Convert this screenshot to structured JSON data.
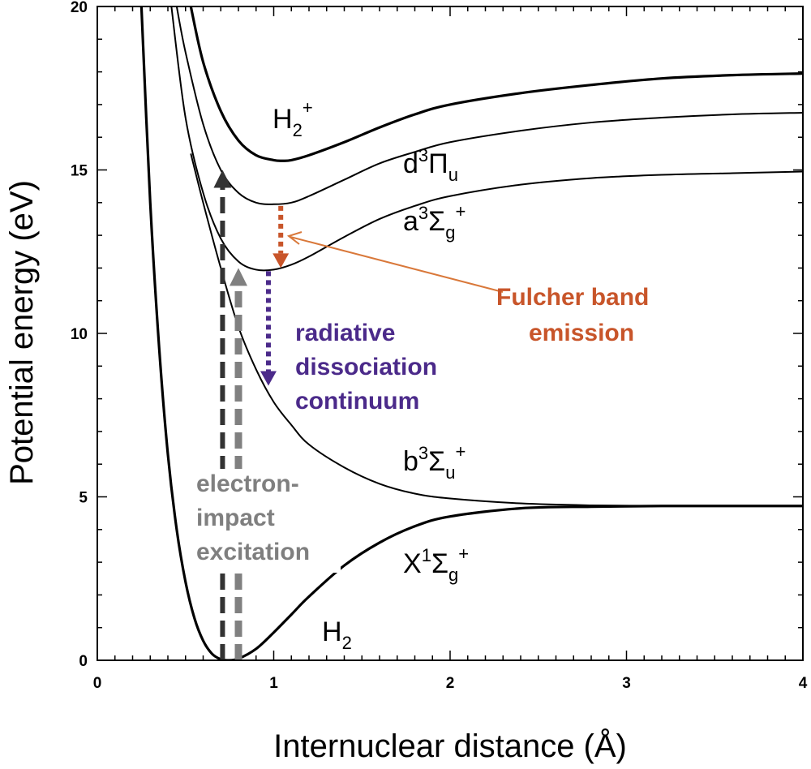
{
  "chart_data": {
    "type": "line",
    "title": "",
    "xlabel": "Internuclear distance (Å)",
    "ylabel": "Potential energy (eV)",
    "xlim": [
      0,
      4
    ],
    "ylim": [
      0,
      20
    ],
    "xticks": [
      "0",
      "1",
      "2",
      "3",
      "4"
    ],
    "yticks": [
      "0",
      "5",
      "10",
      "15",
      "20"
    ],
    "grid": false,
    "legend": "none",
    "series": [
      {
        "name": "X1Σg+",
        "x": [
          0.25,
          0.3,
          0.35,
          0.4,
          0.45,
          0.5,
          0.55,
          0.6,
          0.65,
          0.7,
          0.74,
          0.8,
          0.9,
          1.0,
          1.1,
          1.2,
          1.4,
          1.6,
          1.8,
          2.0,
          2.4,
          2.8,
          3.2,
          3.6,
          4.0
        ],
        "y": [
          20,
          14.0,
          9.6,
          6.3,
          4.0,
          2.4,
          1.3,
          0.6,
          0.2,
          0.03,
          0.0,
          0.05,
          0.35,
          0.85,
          1.4,
          1.95,
          2.9,
          3.6,
          4.1,
          4.4,
          4.65,
          4.7,
          4.72,
          4.72,
          4.72
        ]
      },
      {
        "name": "b3Σu+",
        "x": [
          0.53,
          0.6,
          0.7,
          0.8,
          0.9,
          1.0,
          1.1,
          1.2,
          1.4,
          1.6,
          1.8,
          2.0,
          2.4,
          2.8,
          3.2,
          3.6,
          4.0
        ],
        "y": [
          15.5,
          14.0,
          12.0,
          10.2,
          8.9,
          7.9,
          7.2,
          6.6,
          5.9,
          5.4,
          5.1,
          4.95,
          4.8,
          4.74,
          4.72,
          4.72,
          4.72
        ]
      },
      {
        "name": "a3Σg+",
        "x": [
          0.42,
          0.5,
          0.6,
          0.7,
          0.8,
          0.9,
          1.0,
          1.1,
          1.2,
          1.4,
          1.6,
          1.8,
          2.0,
          2.4,
          2.8,
          3.2,
          3.6,
          4.0
        ],
        "y": [
          20,
          16.6,
          14.3,
          12.9,
          12.2,
          11.95,
          11.95,
          12.1,
          12.35,
          12.95,
          13.5,
          13.9,
          14.2,
          14.55,
          14.75,
          14.85,
          14.9,
          14.95
        ]
      },
      {
        "name": "d3Πu",
        "x": [
          0.45,
          0.5,
          0.6,
          0.7,
          0.8,
          0.9,
          1.0,
          1.1,
          1.2,
          1.4,
          1.6,
          1.8,
          2.0,
          2.4,
          2.8,
          3.2,
          3.6,
          4.0
        ],
        "y": [
          20,
          18.6,
          16.4,
          15.0,
          14.3,
          14.0,
          13.95,
          14.0,
          14.2,
          14.7,
          15.2,
          15.55,
          15.85,
          16.2,
          16.45,
          16.6,
          16.7,
          16.75
        ]
      },
      {
        "name": "H2+",
        "x": [
          0.53,
          0.6,
          0.7,
          0.8,
          0.9,
          1.0,
          1.05,
          1.1,
          1.2,
          1.4,
          1.6,
          1.8,
          2.0,
          2.4,
          2.8,
          3.2,
          3.6,
          4.0
        ],
        "y": [
          20,
          18.3,
          16.8,
          15.9,
          15.45,
          15.3,
          15.28,
          15.3,
          15.45,
          15.85,
          16.3,
          16.7,
          17.0,
          17.35,
          17.6,
          17.8,
          17.9,
          17.95
        ]
      }
    ],
    "labels": {
      "h2_plus": "H",
      "h2_plus_sub": "2",
      "h2_plus_sup": "+",
      "d_state": "d",
      "d_sup": "3",
      "d_sym": "Π",
      "d_sub": "u",
      "a_state": "a",
      "a_sup": "3",
      "a_sym": "Σ",
      "a_sub": "g",
      "a_sup2": "+",
      "b_state": "b",
      "b_sup": "3",
      "b_sym": "Σ",
      "b_sub": "u",
      "b_sup2": "+",
      "x_state": "X",
      "x_sup": "1",
      "x_sym": "Σ",
      "x_sub": "g",
      "x_sup2": "+",
      "h2": "H",
      "h2_sub": "2"
    },
    "annotations": {
      "fulcher_line1": "Fulcher band",
      "fulcher_line2": "emission",
      "radiative_line1": "radiative",
      "radiative_line2": "dissociation",
      "radiative_line3": "continuum",
      "electron_line1": "electron-",
      "electron_line2": "impact",
      "electron_line3": "excitation"
    },
    "arrows": [
      {
        "name": "excitation-arrow-to-d",
        "x": 0.71,
        "from": 0.0,
        "to": 15.0,
        "style": "dashed",
        "color": "#333333"
      },
      {
        "name": "excitation-arrow-to-a",
        "x": 0.8,
        "from": 0.0,
        "to": 12.0,
        "style": "dashed",
        "color": "#808080"
      },
      {
        "name": "fulcher-arrow",
        "x": 1.04,
        "from": 13.9,
        "to": 12.0,
        "style": "dotted",
        "color": "#c8552a"
      },
      {
        "name": "radiative-arrow",
        "x": 0.97,
        "from": 11.9,
        "to": 8.4,
        "style": "dotted",
        "color": "#4b2a8a"
      }
    ],
    "colors": {
      "fulcher": "#c8552a",
      "radiative": "#4b2a8a",
      "electron": "#7f7f7f",
      "dark_arrow": "#333333",
      "gray_arrow": "#808080"
    }
  }
}
